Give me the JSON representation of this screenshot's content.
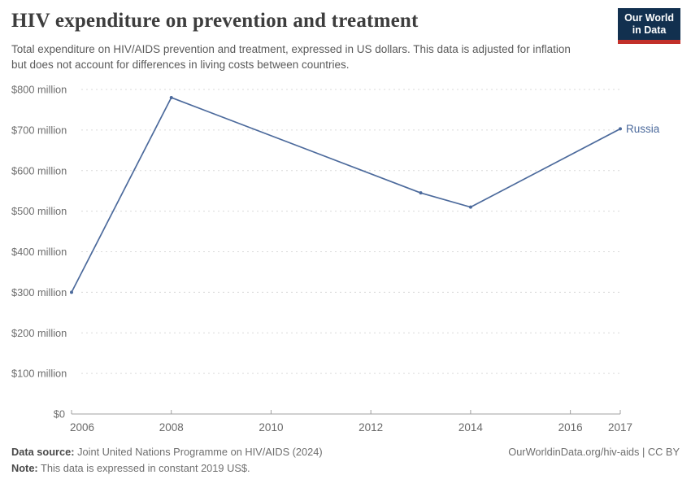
{
  "header": {
    "title": "HIV expenditure on prevention and treatment",
    "subtitle": "Total expenditure on HIV/AIDS prevention and treatment, expressed in US dollars. This data is adjusted for inflation but does not account for differences in living costs between countries."
  },
  "logo": {
    "line1": "Our World",
    "line2": "in Data",
    "bg_color": "#12304f",
    "accent_color": "#c2302a"
  },
  "chart_data": {
    "type": "line",
    "title": "HIV expenditure on prevention and treatment",
    "entity": "Russia",
    "x": [
      2006,
      2008,
      2013,
      2014,
      2017
    ],
    "series": [
      {
        "name": "Russia",
        "color": "#4c6a9c",
        "values": [
          300,
          780,
          545,
          510,
          703
        ]
      }
    ],
    "values_unit": "million US$ (constant 2019)",
    "xlim": [
      2006,
      2017
    ],
    "ylim": [
      0,
      800
    ],
    "x_ticks": [
      2006,
      2008,
      2010,
      2012,
      2014,
      2016,
      2017
    ],
    "y_ticks": [
      {
        "value": 0,
        "label": "$0"
      },
      {
        "value": 100,
        "label": "$100 million"
      },
      {
        "value": 200,
        "label": "$200 million"
      },
      {
        "value": 300,
        "label": "$300 million"
      },
      {
        "value": 400,
        "label": "$400 million"
      },
      {
        "value": 500,
        "label": "$500 million"
      },
      {
        "value": 600,
        "label": "$600 million"
      },
      {
        "value": 700,
        "label": "$700 million"
      },
      {
        "value": 800,
        "label": "$800 million"
      }
    ],
    "grid": "horizontal-dashed",
    "legend": "end-of-line-label",
    "colors": {
      "gridline": "#dadada",
      "axis": "#a0a0a0",
      "tick_label": "#6e6e6e"
    }
  },
  "footer": {
    "datasource_label": "Data source:",
    "datasource": "Joint United Nations Programme on HIV/AIDS (2024)",
    "note_label": "Note:",
    "note": "This data is expressed in constant 2019 US$.",
    "right": "OurWorldinData.org/hiv-aids | CC BY"
  }
}
